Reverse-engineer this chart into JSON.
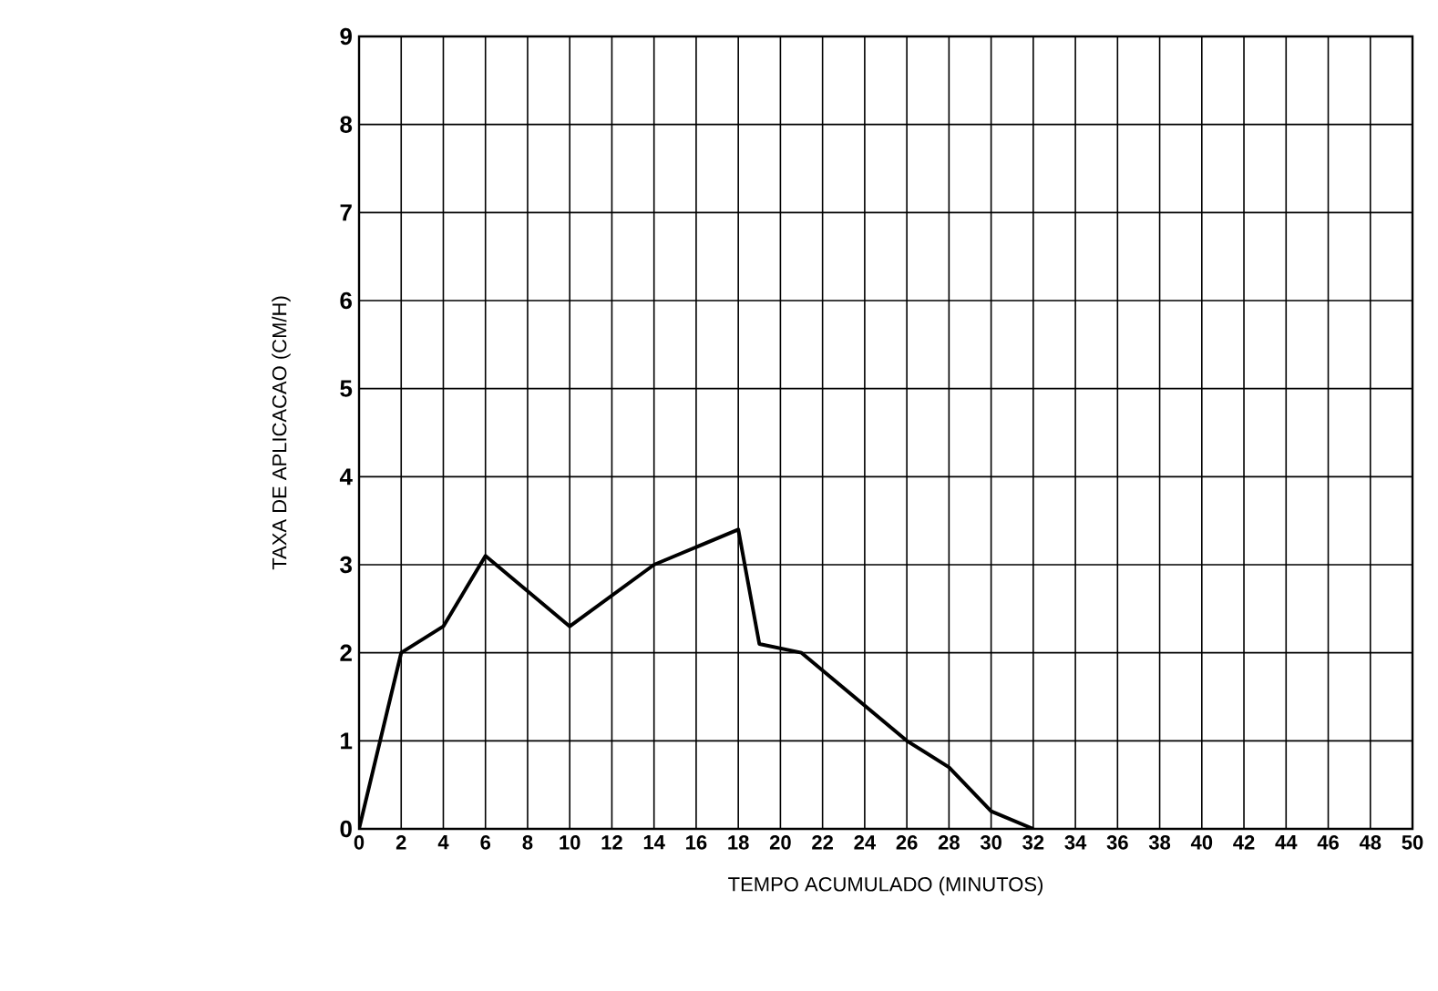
{
  "chart_data": {
    "type": "line",
    "xlabel": "TEMPO ACUMULADO (MINUTOS)",
    "ylabel": "TAXA DE APLICACAO (CM/H)",
    "x": [
      0,
      2,
      4,
      6,
      10,
      14,
      18,
      19,
      21,
      26,
      28,
      30,
      32
    ],
    "series": [
      {
        "color": "#000000",
        "values": [
          0,
          2,
          2.3,
          3.1,
          2.3,
          3.0,
          3.4,
          2.1,
          2.0,
          1.0,
          0.7,
          0.2,
          0
        ]
      }
    ],
    "xlim": [
      0,
      50
    ],
    "xticks": [
      0,
      2,
      4,
      6,
      8,
      10,
      12,
      14,
      16,
      18,
      20,
      22,
      24,
      26,
      28,
      30,
      32,
      34,
      36,
      38,
      40,
      42,
      44,
      46,
      48,
      50
    ],
    "ylim": [
      0,
      9
    ],
    "yticks": [
      0,
      1,
      2,
      3,
      4,
      5,
      6,
      7,
      8,
      9
    ],
    "grid": true,
    "marker": "none",
    "line_style": "solid"
  }
}
